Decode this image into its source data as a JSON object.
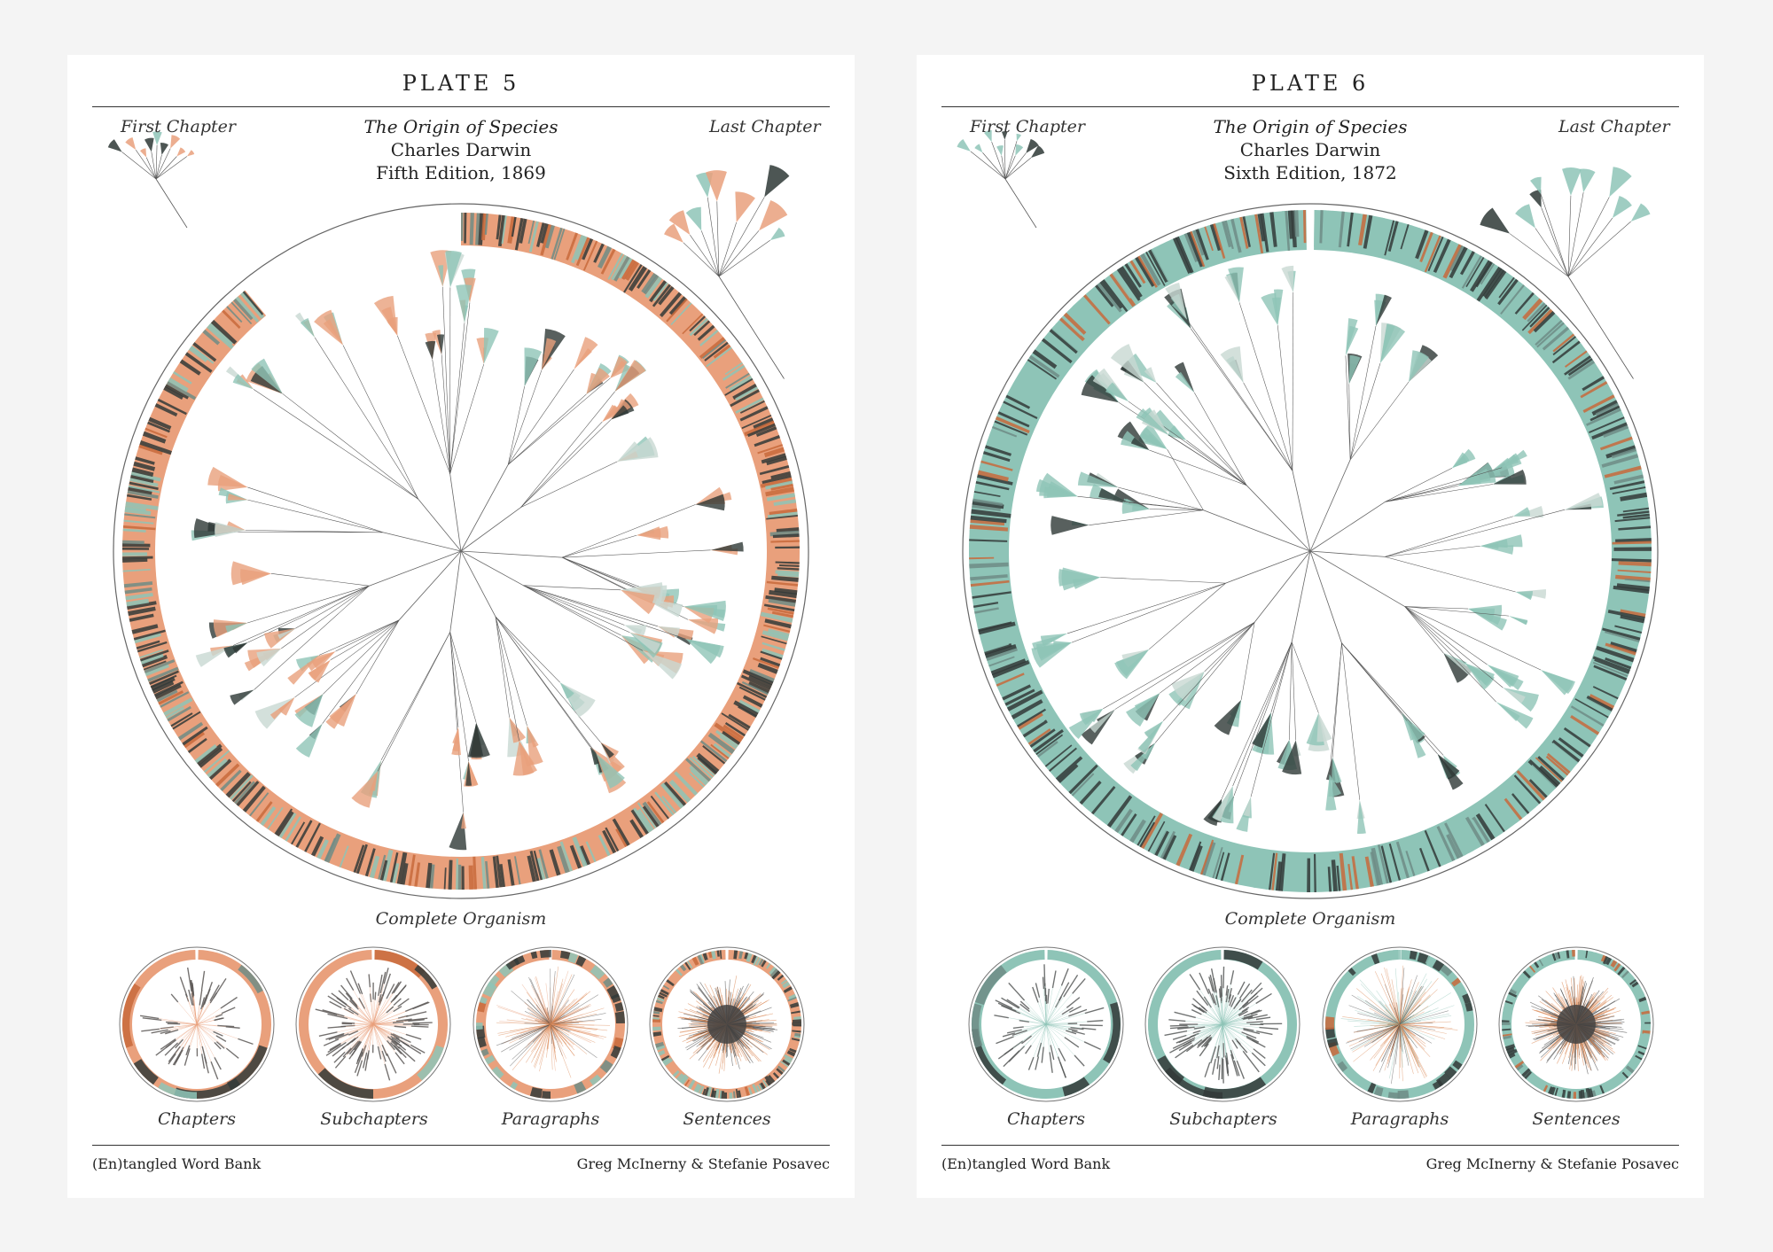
{
  "plates": [
    {
      "title": "PLATE 5",
      "first_chapter_label": "First Chapter",
      "last_chapter_label": "Last Chapter",
      "book_title": "The Origin of Species",
      "author": "Charles Darwin",
      "edition": "Fifth Edition, 1869",
      "main_label": "Complete Organism",
      "mini_labels": [
        "Chapters",
        "Subchapters",
        "Paragraphs",
        "Sentences"
      ],
      "footer_left": "(En)tangled Word Bank",
      "footer_right": "Greg McInerny & Stefanie Posavec",
      "accent_color": "#e9a07c",
      "secondary_color": "#8ec4b7"
    },
    {
      "title": "PLATE 6",
      "first_chapter_label": "First Chapter",
      "last_chapter_label": "Last Chapter",
      "book_title": "The Origin of Species",
      "author": "Charles Darwin",
      "edition": "Sixth Edition, 1872",
      "main_label": "Complete Organism",
      "mini_labels": [
        "Chapters",
        "Subchapters",
        "Paragraphs",
        "Sentences"
      ],
      "footer_left": "(En)tangled Word Bank",
      "footer_right": "Greg McInerny & Stefanie Posavec",
      "accent_color": "#8ec4b7",
      "secondary_color": "#8ec4b7"
    }
  ]
}
